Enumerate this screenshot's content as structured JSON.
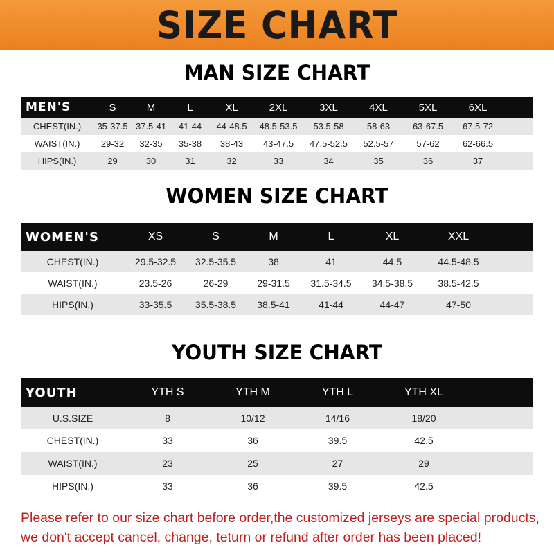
{
  "title": "SIZE CHART",
  "men": {
    "title": "MAN SIZE CHART",
    "header": [
      "MEN'S",
      "S",
      "M",
      "L",
      "XL",
      "2XL",
      "3XL",
      "4XL",
      "5XL",
      "6XL"
    ],
    "rows": [
      [
        "CHEST(IN.)",
        "35-37.5",
        "37.5-41",
        "41-44",
        "44-48.5",
        "48.5-53.5",
        "53.5-58",
        "58-63",
        "63-67.5",
        "67.5-72"
      ],
      [
        "WAIST(IN.)",
        "29-32",
        "32-35",
        "35-38",
        "38-43",
        "43-47.5",
        "47.5-52.5",
        "52.5-57",
        "57-62",
        "62-66.5"
      ],
      [
        "HIPS(IN.)",
        "29",
        "30",
        "31",
        "32",
        "33",
        "34",
        "35",
        "36",
        "37"
      ]
    ]
  },
  "women": {
    "title": "WOMEN SIZE CHART",
    "header": [
      "WOMEN'S",
      "XS",
      "S",
      "M",
      "L",
      "XL",
      "XXL"
    ],
    "rows": [
      [
        "CHEST(IN.)",
        "29.5-32.5",
        "32.5-35.5",
        "38",
        "41",
        "44.5",
        "44.5-48.5"
      ],
      [
        "WAIST(IN.)",
        "23.5-26",
        "26-29",
        "29-31.5",
        "31.5-34.5",
        "34.5-38.5",
        "38.5-42.5"
      ],
      [
        "HIPS(IN.)",
        "33-35.5",
        "35.5-38.5",
        "38.5-41",
        "41-44",
        "44-47",
        "47-50"
      ]
    ]
  },
  "youth": {
    "title": "YOUTH SIZE CHART",
    "header": [
      "YOUTH",
      "YTH S",
      "YTH M",
      "YTH L",
      "YTH XL"
    ],
    "rows": [
      [
        "U.S.SIZE",
        "8",
        "10/12",
        "14/16",
        "18/20"
      ],
      [
        "CHEST(IN.)",
        "33",
        "36",
        "39.5",
        "42.5"
      ],
      [
        "WAIST(IN.)",
        "23",
        "25",
        "27",
        "29"
      ],
      [
        "HIPS(IN.)",
        "33",
        "36",
        "39.5",
        "42.5"
      ]
    ]
  },
  "note": [
    "Please refer to our size chart before order,the customized jerseys are special products,",
    "we don't accept cancel, change, teturn or refund after order has been placed!"
  ],
  "colors": {
    "banner": "#ec8020",
    "header_row": "#0d0d0d",
    "stripe": "#e6e6e6",
    "note": "#c0211f"
  }
}
